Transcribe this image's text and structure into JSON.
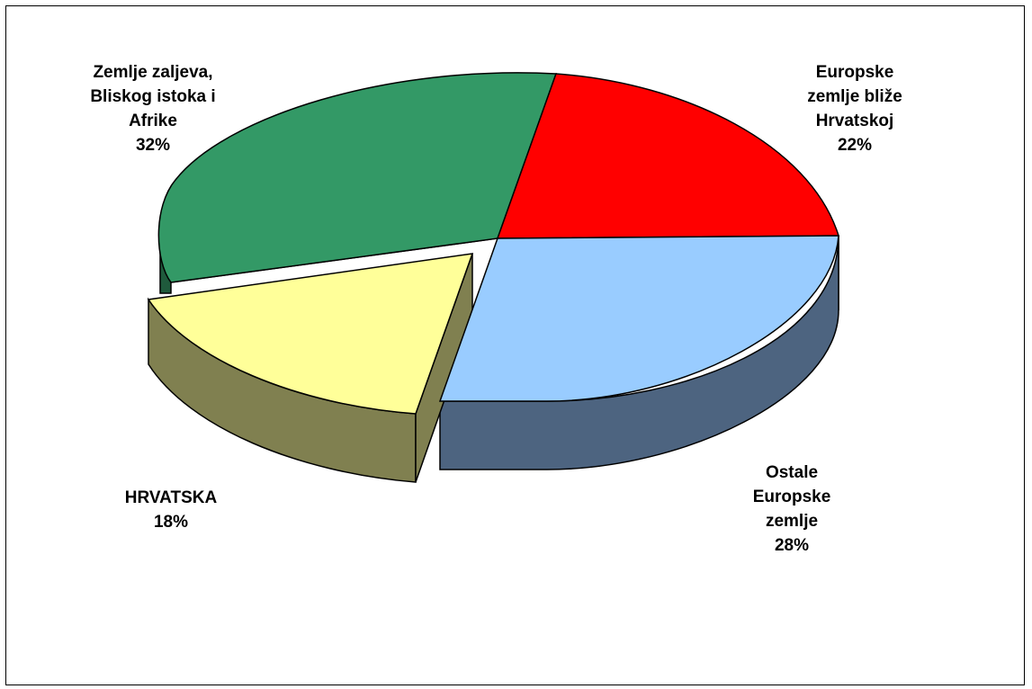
{
  "chart_data": {
    "type": "pie",
    "style": "3d-exploded",
    "slices": [
      {
        "id": "green",
        "label_lines": [
          "Zemlje zaljeva,",
          "Bliskog istoka i",
          "Afrike"
        ],
        "percent_label": "32%",
        "value": 32,
        "color": "#339966",
        "side_color": "#1f5a3c"
      },
      {
        "id": "red",
        "label_lines": [
          "Europske",
          "zemlje bliže",
          "Hrvatskoj"
        ],
        "percent_label": "22%",
        "value": 22,
        "color": "#ff0000",
        "side_color": "#990000"
      },
      {
        "id": "blue",
        "label_lines": [
          "Ostale",
          "Europske",
          "zemlje"
        ],
        "percent_label": "28%",
        "value": 28,
        "color": "#99ccff",
        "side_color": "#4d6480"
      },
      {
        "id": "yellow",
        "label_lines": [
          "HRVATSKA"
        ],
        "percent_label": "18%",
        "value": 18,
        "color": "#ffff99",
        "side_color": "#808050",
        "exploded": true
      }
    ]
  }
}
